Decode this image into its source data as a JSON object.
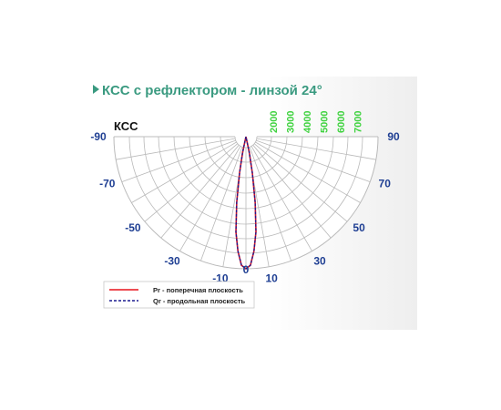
{
  "title": "КСС с рефлектором - линзой 24°",
  "chart_data": {
    "type": "polar",
    "heading": "КСС",
    "angle_ticks_left": [
      "-90",
      "-70",
      "-50",
      "-30",
      "-10"
    ],
    "angle_ticks_right": [
      "0",
      "10",
      "30",
      "50",
      "70",
      "90"
    ],
    "angle_range": [
      -90,
      90
    ],
    "radial_ticks": [
      "2000",
      "3000",
      "4000",
      "5000",
      "6000",
      "7000"
    ],
    "radial_range": [
      0,
      7000
    ],
    "grid": true,
    "legend_position": "bottom-left",
    "series": [
      {
        "name": "Pr - поперечная плоскость",
        "color": "#e8121b",
        "style": "solid",
        "angles": [
          -12,
          -10,
          -8,
          -6,
          -4,
          -2,
          0,
          2,
          4,
          6,
          8,
          10,
          12
        ],
        "values": [
          300,
          1500,
          3200,
          4900,
          6000,
          6800,
          7000,
          6800,
          6000,
          4900,
          3200,
          1500,
          300
        ]
      },
      {
        "name": "Qr - продольная плоскость",
        "color": "#1b1b8f",
        "style": "dashed",
        "angles": [
          -12,
          -10,
          -8,
          -6,
          -4,
          -2,
          0,
          2,
          4,
          6,
          8,
          10,
          12
        ],
        "values": [
          300,
          1500,
          3200,
          4900,
          6000,
          6800,
          7000,
          6800,
          6000,
          4900,
          3200,
          1500,
          300
        ]
      }
    ]
  }
}
